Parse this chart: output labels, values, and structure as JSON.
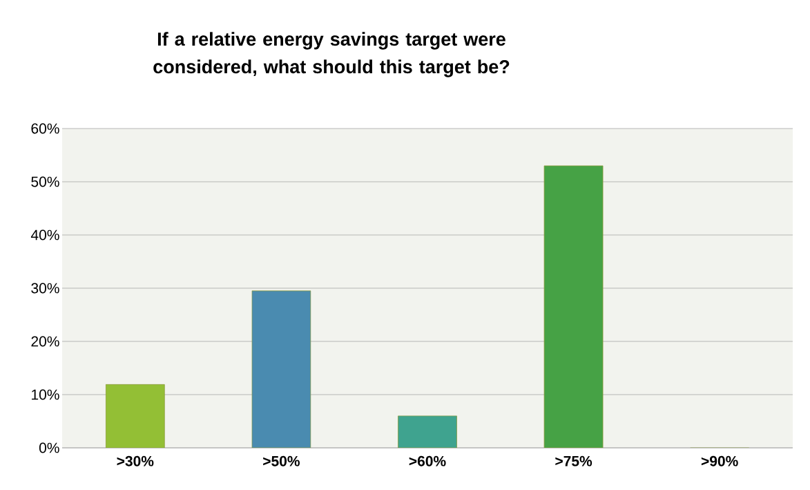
{
  "chart_data": {
    "type": "bar",
    "title": "If a relative energy savings target were considered, what should this target be?",
    "categories": [
      ">30%",
      ">50%",
      ">60%",
      ">75%",
      ">90%"
    ],
    "values": [
      11.9,
      29.5,
      6.0,
      53.0,
      0
    ],
    "colors": [
      "#93bf35",
      "#4a8bb0",
      "#3fa38f",
      "#46a245",
      "#46a245"
    ],
    "ylim": [
      0,
      60
    ],
    "yticks": [
      {
        "value": 0,
        "label": "0%"
      },
      {
        "value": 10,
        "label": "10%"
      },
      {
        "value": 20,
        "label": "20%"
      },
      {
        "value": 30,
        "label": "30%"
      },
      {
        "value": 40,
        "label": "40%"
      },
      {
        "value": 50,
        "label": "50%"
      },
      {
        "value": 60,
        "label": "60%"
      }
    ],
    "grid": "y"
  }
}
